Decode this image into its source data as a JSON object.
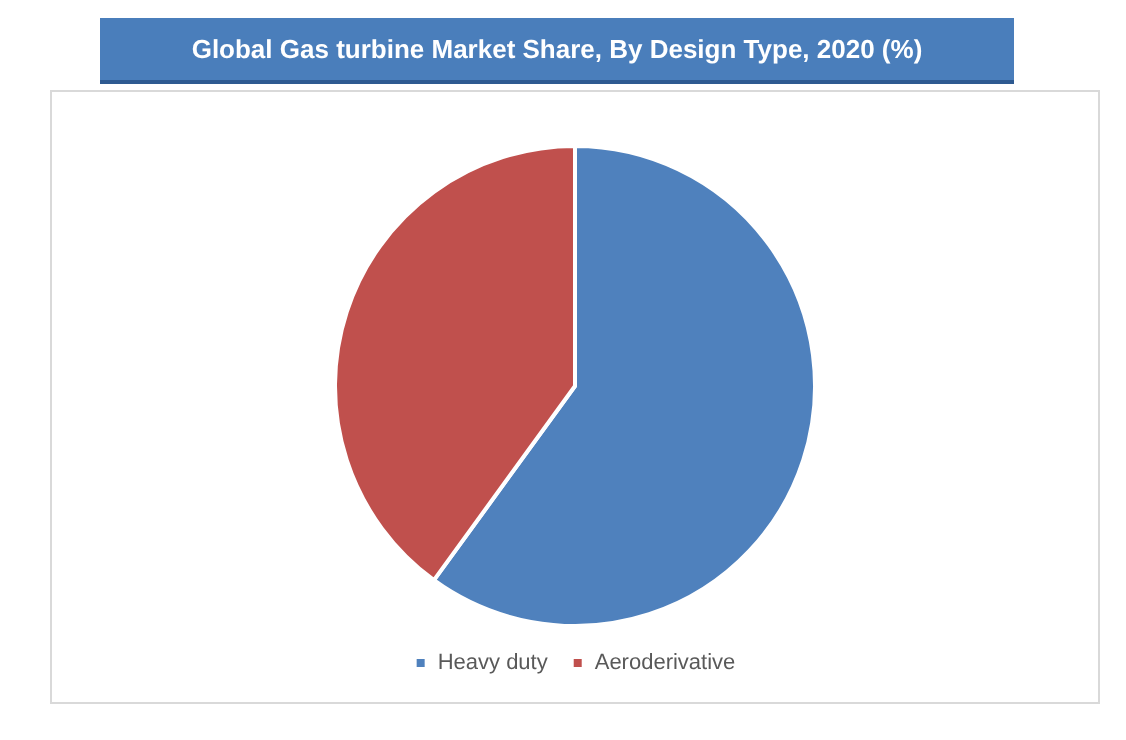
{
  "chart_data": {
    "type": "pie",
    "title": "Global Gas turbine Market Share, By Design Type, 2020 (%)",
    "categories": [
      "Heavy duty",
      "Aeroderivative"
    ],
    "values": [
      60,
      40
    ],
    "colors": [
      "#4f81bd",
      "#c0504d"
    ],
    "legend": "bottom"
  }
}
